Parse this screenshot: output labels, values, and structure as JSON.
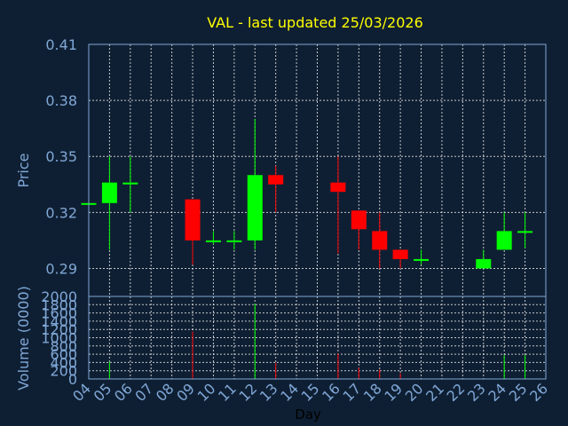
{
  "chart_data": {
    "type": "candlestick",
    "title": "VAL - last updated 25/03/2026",
    "ylabel_price": "Price",
    "ylabel_volume": "Volume (0000)",
    "xlabel": "Day",
    "price_ylim": [
      0.275,
      0.41
    ],
    "price_ticks": [
      "0.41",
      "0.38",
      "0.35",
      "0.32",
      "0.29"
    ],
    "volume_ylim": [
      0,
      2000
    ],
    "volume_ticks": [
      "2000",
      "1800",
      "1600",
      "1400",
      "1200",
      "1000",
      "800",
      "600",
      "400",
      "200",
      "0"
    ],
    "x_ticks": [
      "04",
      "05",
      "06",
      "07",
      "08",
      "09",
      "10",
      "11",
      "12",
      "13",
      "14",
      "15",
      "16",
      "17",
      "18",
      "19",
      "20",
      "21",
      "22",
      "23",
      "24",
      "25",
      "26"
    ],
    "grid": true,
    "up_color": "#00ff00",
    "down_color": "#ff0000",
    "candles": [
      {
        "x": "04",
        "open": 0.325,
        "high": 0.325,
        "low": 0.325,
        "close": 0.325,
        "volume": 0
      },
      {
        "x": "05",
        "open": 0.325,
        "high": 0.35,
        "low": 0.3,
        "close": 0.336,
        "volume": 420
      },
      {
        "x": "06",
        "open": 0.335,
        "high": 0.35,
        "low": 0.32,
        "close": 0.336,
        "volume": 0
      },
      {
        "x": "09",
        "open": 0.327,
        "high": 0.327,
        "low": 0.292,
        "close": 0.305,
        "volume": 1150
      },
      {
        "x": "10",
        "open": 0.305,
        "high": 0.31,
        "low": 0.303,
        "close": 0.305,
        "volume": 0
      },
      {
        "x": "11",
        "open": 0.305,
        "high": 0.31,
        "low": 0.3,
        "close": 0.305,
        "volume": 0
      },
      {
        "x": "12",
        "open": 0.305,
        "high": 0.37,
        "low": 0.3,
        "close": 0.34,
        "volume": 1820
      },
      {
        "x": "13",
        "open": 0.34,
        "high": 0.345,
        "low": 0.32,
        "close": 0.335,
        "volume": 390
      },
      {
        "x": "16",
        "open": 0.336,
        "high": 0.35,
        "low": 0.298,
        "close": 0.331,
        "volume": 620
      },
      {
        "x": "17",
        "open": 0.321,
        "high": 0.321,
        "low": 0.3,
        "close": 0.311,
        "volume": 270
      },
      {
        "x": "18",
        "open": 0.31,
        "high": 0.32,
        "low": 0.29,
        "close": 0.3,
        "volume": 230
      },
      {
        "x": "19",
        "open": 0.3,
        "high": 0.3,
        "low": 0.29,
        "close": 0.295,
        "volume": 140
      },
      {
        "x": "20",
        "open": 0.295,
        "high": 0.3,
        "low": 0.292,
        "close": 0.295,
        "volume": 0
      },
      {
        "x": "23",
        "open": 0.29,
        "high": 0.3,
        "low": 0.29,
        "close": 0.295,
        "volume": 0
      },
      {
        "x": "24",
        "open": 0.3,
        "high": 0.32,
        "low": 0.3,
        "close": 0.31,
        "volume": 580
      },
      {
        "x": "25",
        "open": 0.31,
        "high": 0.32,
        "low": 0.301,
        "close": 0.31,
        "volume": 580
      }
    ]
  }
}
